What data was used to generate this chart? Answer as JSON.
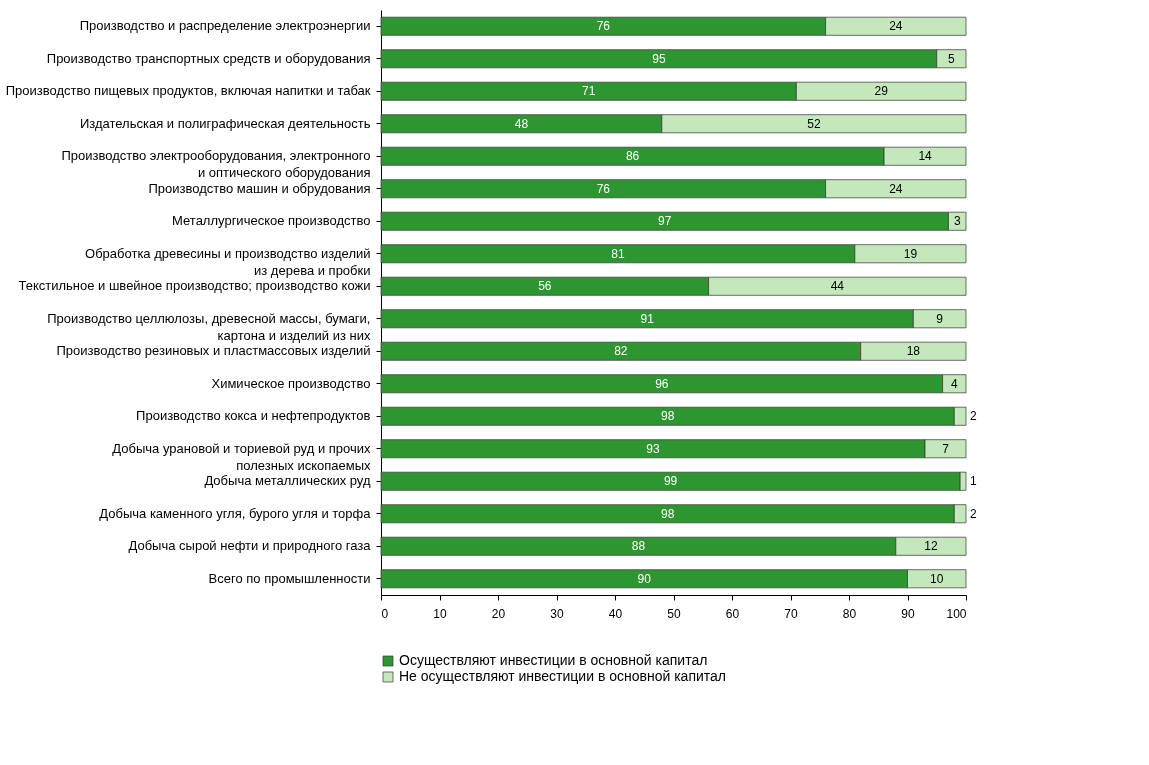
{
  "chart_data": {
    "type": "bar",
    "orientation": "horizontal",
    "stacked": true,
    "data_labels": true,
    "legend": "bottom",
    "grid": false,
    "categories": [
      "Производство и распределение электроэнергии",
      "Производство транспортных средств и оборудования",
      "Производство пищевых продуктов, включая напитки и табак",
      "Издательская и полиграфическая деятельность",
      "Производство электрооборудования, электронного\nи оптического оборудования",
      "Производство машин и обрудования",
      "Металлургическое производство",
      "Обработка древесины и производство изделий\nиз дерева и пробки",
      "Текстильное и швейное производство; производство кожи",
      "Производство целлюлозы, древесной массы, бумаги,\nкартона и изделий из них",
      "Производство резиновых и пластмассовых изделий",
      "Химическое производство",
      "Производство кокса и нефтепродуктов",
      "Добыча урановой и ториевой руд и прочих\nполезных ископаемых",
      "Добыча металлических руд",
      "Добыча каменного угля, бурого угля и торфа",
      "Добыча сырой нефти и природного газа",
      "Всего по промышленности"
    ],
    "series": [
      {
        "name": "Осуществляют инвестиции в основной капитал",
        "color": "#2e9630",
        "values": [
          76,
          95,
          71,
          48,
          86,
          76,
          97,
          81,
          56,
          91,
          82,
          96,
          98,
          93,
          99,
          98,
          88,
          90
        ]
      },
      {
        "name": "Не осуществляют инвестиции в основной капитал",
        "color": "#c4e8bc",
        "values": [
          24,
          5,
          29,
          52,
          14,
          24,
          3,
          19,
          44,
          9,
          18,
          4,
          2,
          7,
          1,
          2,
          12,
          10
        ]
      }
    ],
    "xlim": [
      0,
      100
    ],
    "xticks": [
      0,
      10,
      20,
      30,
      40,
      50,
      60,
      70,
      80,
      90,
      100
    ]
  }
}
